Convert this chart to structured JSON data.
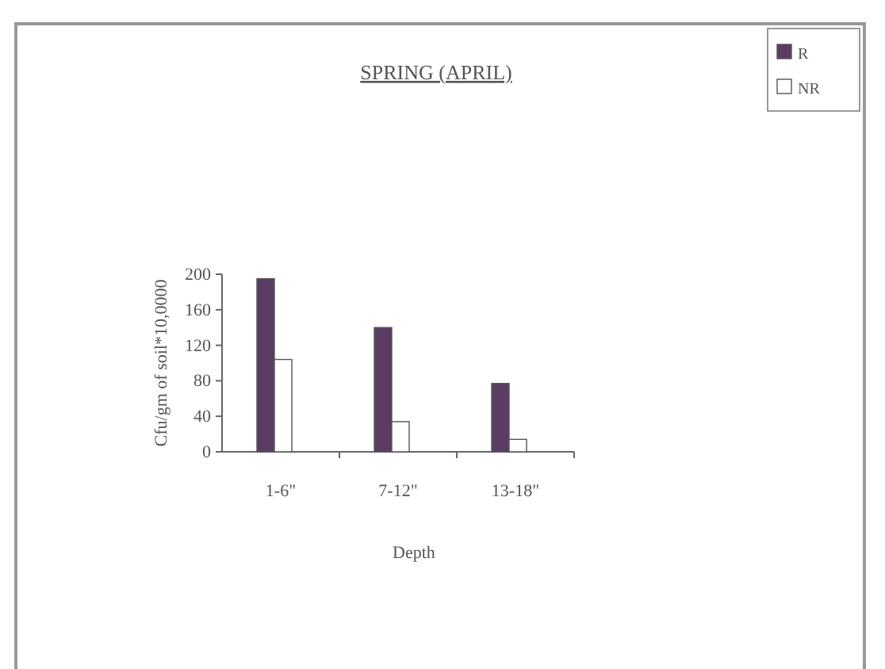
{
  "chart_data": {
    "type": "bar",
    "title": "SPRING (APRIL)",
    "xlabel": "Depth",
    "ylabel": "Cfu/gm of soil*10,0000",
    "categories": [
      "1-6\"",
      "7-12\"",
      "13-18\""
    ],
    "series": [
      {
        "name": "R",
        "color": "#5b3d63",
        "values": [
          195,
          140,
          77
        ]
      },
      {
        "name": "NR",
        "color": "#ffffff",
        "values": [
          104,
          34,
          14
        ]
      }
    ],
    "ylim": [
      0,
      200
    ],
    "yticks": [
      0,
      40,
      80,
      120,
      160,
      200
    ],
    "grid": false,
    "legend": "top right"
  }
}
